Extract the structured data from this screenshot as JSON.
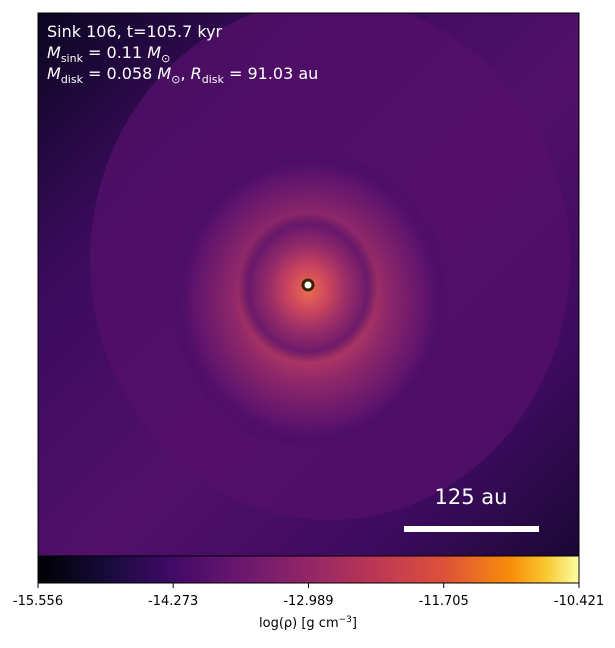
{
  "chart_data": {
    "type": "image",
    "annotation": {
      "line1": "Sink 106, t=105.7 kyr",
      "line2": {
        "symbol": "M",
        "sub": "sink",
        "value": " = 0.11 ",
        "unit": "M",
        "unit_sub": "⊙"
      },
      "line3": {
        "symbol": "M",
        "sub": "disk",
        "value": " = 0.058 ",
        "unit": "M",
        "unit_sub": "⊙",
        "sep": ", ",
        "symbol2": "R",
        "sub2": "disk",
        "value2": " = 91.03 au"
      }
    },
    "scale_bar_label": "125 au",
    "colorbar": {
      "clim": [
        -15.556,
        -10.421
      ],
      "ticks": [
        -15.556,
        -14.273,
        -12.989,
        -11.705,
        -10.421
      ],
      "label": {
        "text": "log(ρ) [g cm",
        "sup": "−3",
        "close": "]"
      }
    }
  }
}
